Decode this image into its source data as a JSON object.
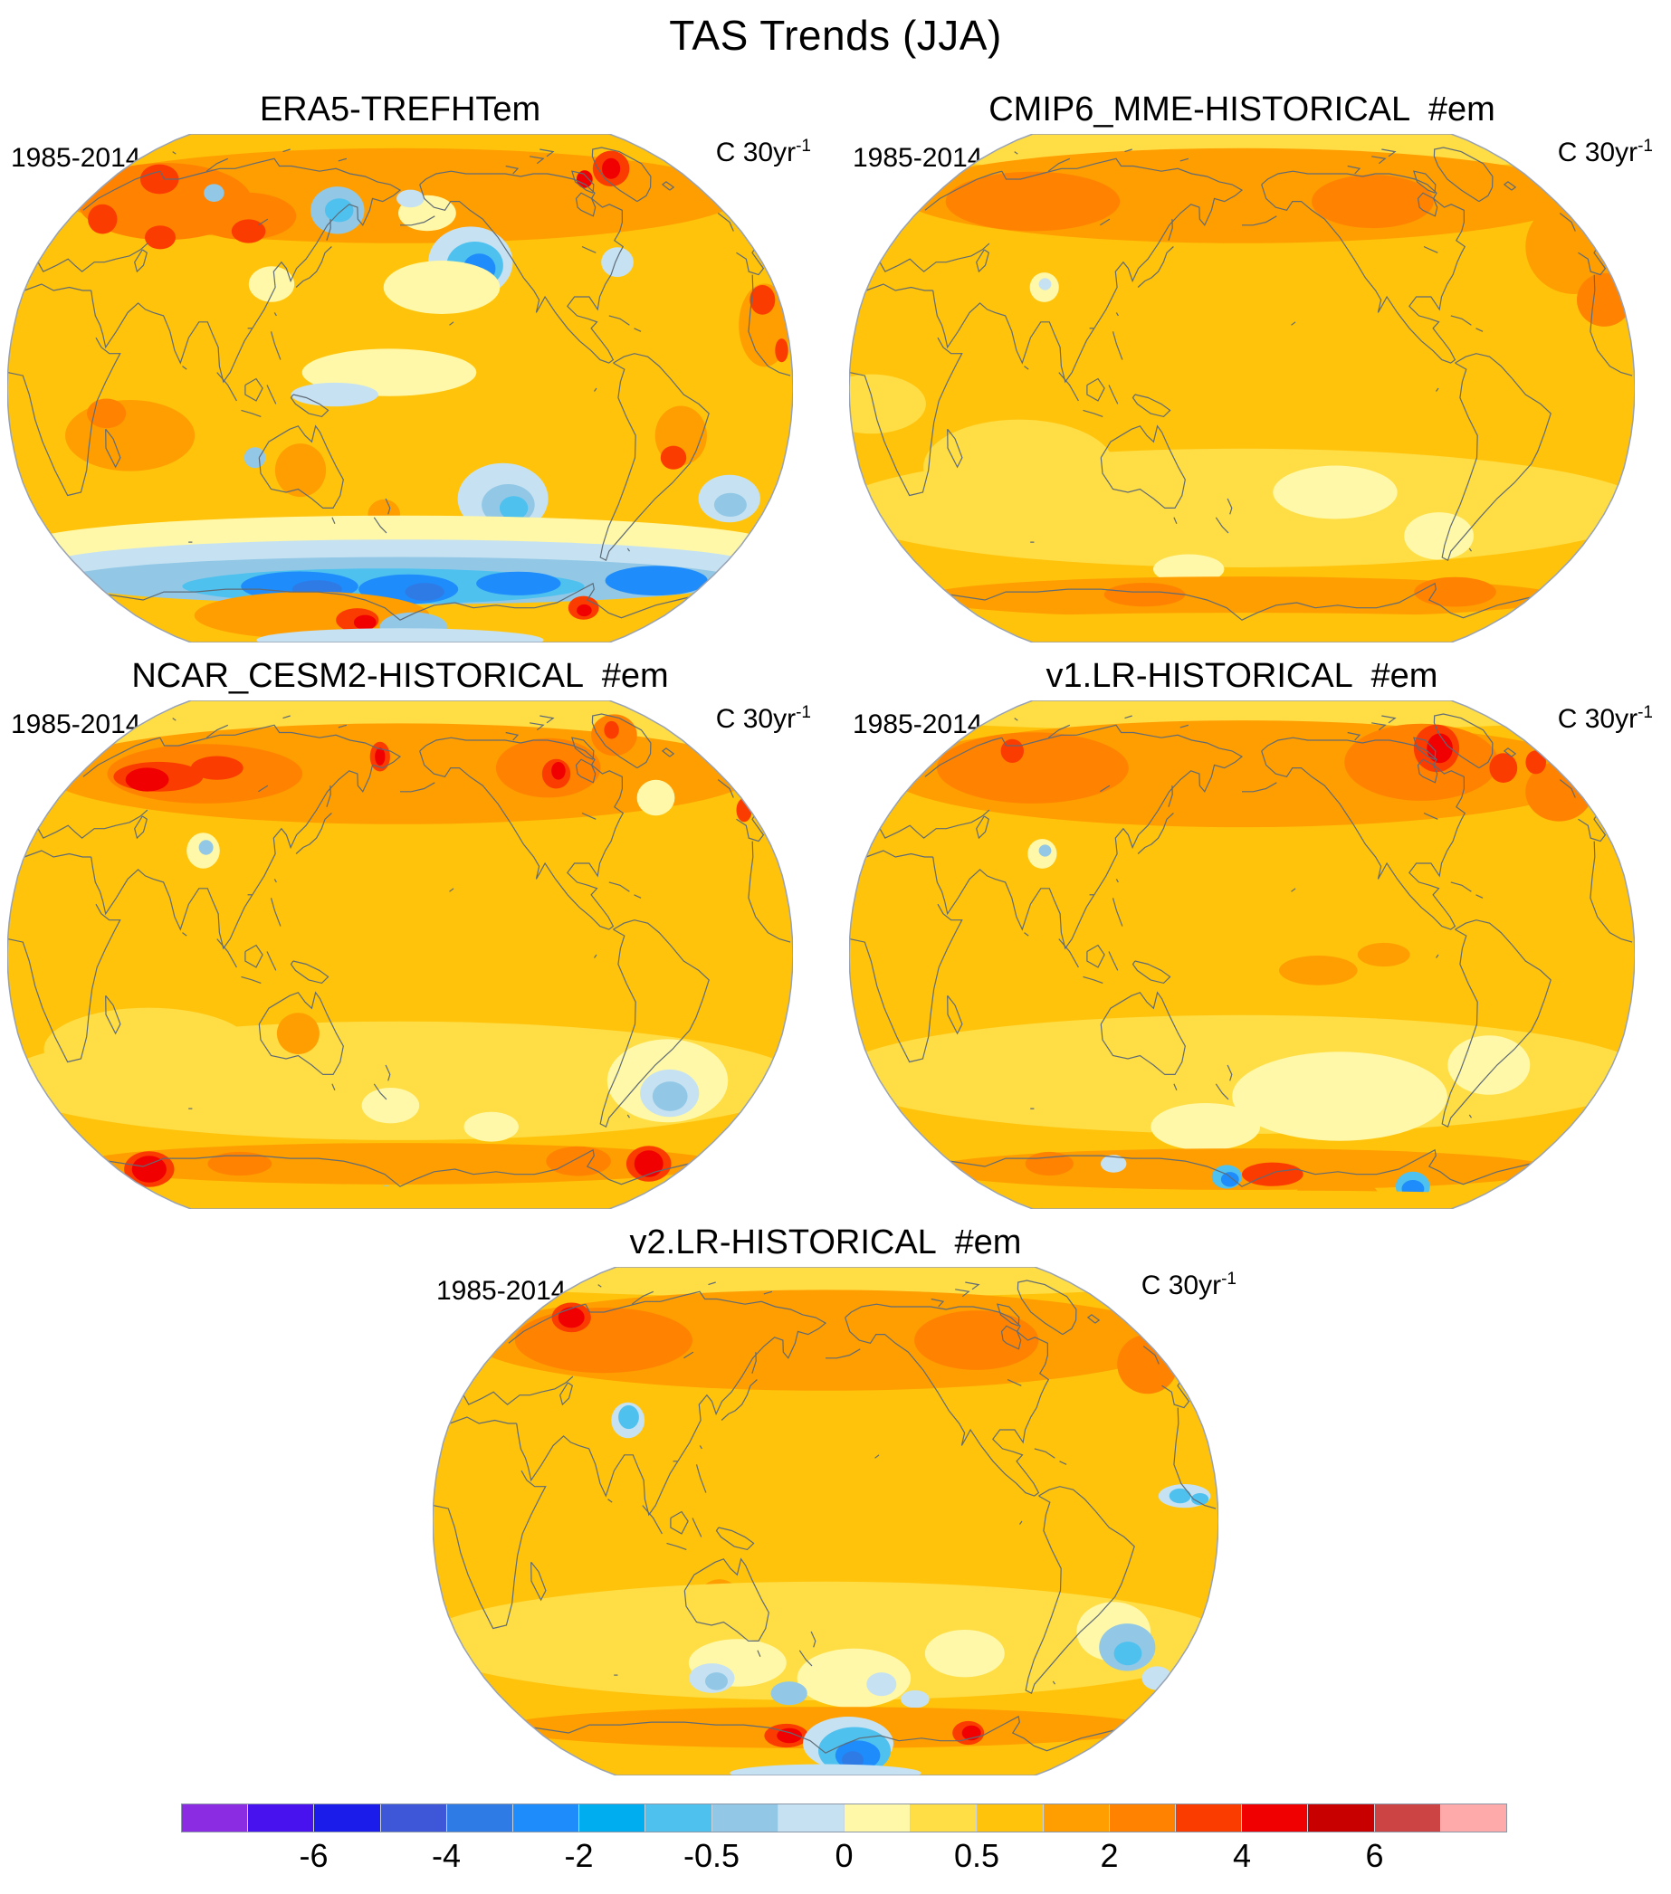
{
  "figure": {
    "title": "TAS Trends (JJA)"
  },
  "panels": [
    {
      "id": "era5",
      "title": "ERA5-TREFHTem",
      "period": "1985-2014",
      "units_base": "C 30yr",
      "units_exp": "-1"
    },
    {
      "id": "cmip6",
      "title": "CMIP6_MME-HISTORICAL  #em",
      "period": "1985-2014",
      "units_base": "C 30yr",
      "units_exp": "-1"
    },
    {
      "id": "ncar",
      "title": "NCAR_CESM2-HISTORICAL  #em",
      "period": "1985-2014",
      "units_base": "C 30yr",
      "units_exp": "-1"
    },
    {
      "id": "v1",
      "title": "v1.LR-HISTORICAL  #em",
      "period": "1985-2014",
      "units_base": "C 30yr",
      "units_exp": "-1"
    },
    {
      "id": "v2",
      "title": "v2.LR-HISTORICAL  #em",
      "period": "1985-2014",
      "units_base": "C 30yr",
      "units_exp": "-1"
    }
  ],
  "colorbar": {
    "description": "trend legend, degrees C per 30 years",
    "tick_labels": [
      "-6",
      "-4",
      "-2",
      "-0.5",
      "0",
      "0.5",
      "2",
      "4",
      "6"
    ],
    "tick_values": [
      -6,
      -4,
      -2,
      -0.5,
      0,
      0.5,
      2,
      4,
      6
    ],
    "tick_positions": [
      0.1,
      0.2,
      0.3,
      0.4,
      0.5,
      0.6,
      0.7,
      0.8,
      0.9
    ],
    "colors": [
      "#8B2BE2",
      "#4812EE",
      "#1C1CEA",
      "#3D57D8",
      "#2F7BE5",
      "#1E8CFA",
      "#00AEF0",
      "#4FC1EF",
      "#92C8E6",
      "#C6E2F2",
      "#FFF8A8",
      "#FFDD45",
      "#FFC30B",
      "#FF9E00",
      "#FF8300",
      "#FA3C00",
      "#F00000",
      "#C80000",
      "#CC4444",
      "#FFAAAA"
    ]
  }
}
